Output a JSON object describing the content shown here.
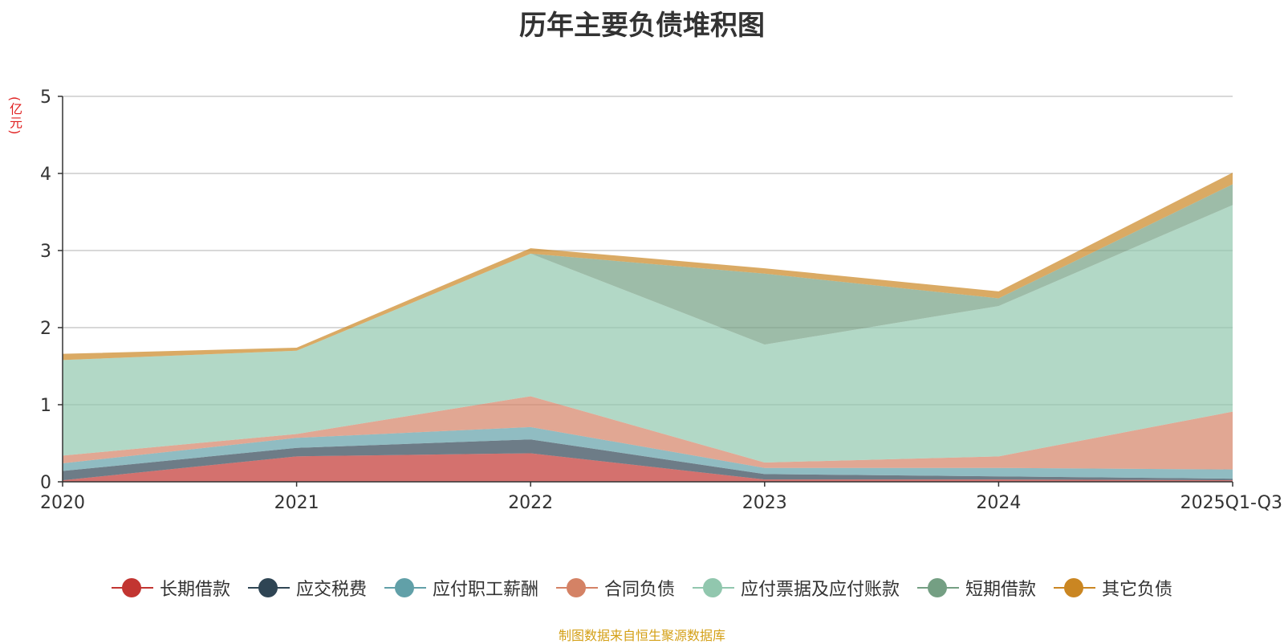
{
  "chart_data": {
    "type": "area",
    "stacked": true,
    "title": "历年主要负债堆积图",
    "unit": "(亿元)",
    "x": [
      "2020",
      "2021",
      "2022",
      "2023",
      "2024",
      "2025Q1-Q3"
    ],
    "ylim": [
      0,
      5
    ],
    "yticks": [
      "0",
      "1",
      "2",
      "3",
      "4",
      "5"
    ],
    "grid": true,
    "legend_position": "bottom",
    "series": [
      {
        "name": "长期借款",
        "color": "#c23531",
        "values": [
          0.02,
          0.33,
          0.37,
          0.03,
          0.03,
          0.02
        ]
      },
      {
        "name": "应交税费",
        "color": "#2f4554",
        "values": [
          0.12,
          0.11,
          0.18,
          0.07,
          0.04,
          0.02
        ]
      },
      {
        "name": "应付职工薪酬",
        "color": "#61a0a8",
        "values": [
          0.1,
          0.13,
          0.16,
          0.08,
          0.11,
          0.12
        ]
      },
      {
        "name": "合同负债",
        "color": "#d48265",
        "values": [
          0.1,
          0.05,
          0.4,
          0.07,
          0.15,
          0.75
        ]
      },
      {
        "name": "应付票据及应付账款",
        "color": "#91c7ae",
        "values": [
          1.24,
          1.08,
          1.85,
          1.53,
          1.95,
          2.68
        ]
      },
      {
        "name": "短期借款",
        "color": "#749f83",
        "values": [
          0.0,
          0.0,
          0.0,
          0.92,
          0.1,
          0.27
        ]
      },
      {
        "name": "其它负债",
        "color": "#ca8622",
        "values": [
          0.08,
          0.04,
          0.07,
          0.07,
          0.09,
          0.15
        ]
      }
    ]
  },
  "footer": "制图数据来自恒生聚源数据库"
}
